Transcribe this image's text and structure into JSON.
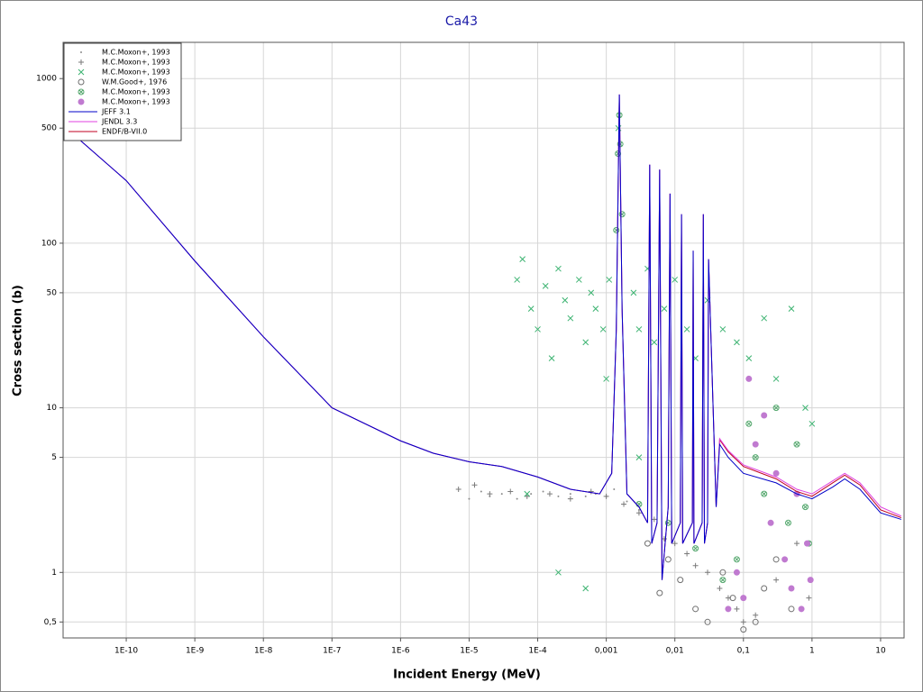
{
  "chart_data": {
    "type": "scatter",
    "title": "Ca43",
    "x_label": "Incident Energy (MeV)",
    "y_label": "Cross section (b)",
    "xscale": "log",
    "yscale": "log",
    "grid": true,
    "legend": "top-left",
    "xlim": [
      1.2e-11,
      22
    ],
    "ylim": [
      0.4,
      1660
    ],
    "xticks": [
      {
        "value": 1e-10,
        "label": "1E-10"
      },
      {
        "value": 1e-09,
        "label": "1E-9"
      },
      {
        "value": 1e-08,
        "label": "1E-8"
      },
      {
        "value": 1e-07,
        "label": "1E-7"
      },
      {
        "value": 1e-06,
        "label": "1E-6"
      },
      {
        "value": 1e-05,
        "label": "1E-5"
      },
      {
        "value": 0.0001,
        "label": "1E-4"
      },
      {
        "value": 0.001,
        "label": "0,001"
      },
      {
        "value": 0.01,
        "label": "0,01"
      },
      {
        "value": 0.1,
        "label": "0,1"
      },
      1,
      10
    ],
    "yticks": [
      {
        "value": 0.5,
        "label": "0,5"
      },
      1,
      5,
      10,
      50,
      100,
      500,
      1000
    ],
    "x": [
      1.2e-11,
      1e-10,
      1e-09,
      1e-08,
      1e-07,
      1e-06,
      3e-06,
      1e-05,
      3e-05,
      0.0001,
      0.0003,
      0.0008,
      0.0012,
      0.0014,
      0.00155,
      0.0017,
      0.002,
      0.003,
      0.004,
      0.0043,
      0.0046,
      0.0055,
      0.006,
      0.0065,
      0.008,
      0.0085,
      0.009,
      0.012,
      0.0125,
      0.013,
      0.018,
      0.0185,
      0.019,
      0.025,
      0.026,
      0.027,
      0.03,
      0.031,
      0.04,
      0.045,
      0.06,
      0.1,
      0.3,
      0.6,
      1,
      2,
      3,
      5,
      10,
      20
    ],
    "series": [
      {
        "name": "M.C.Moxon+, 1993",
        "style": "dot",
        "color": "#8c8c8c",
        "x": [
          1e-05,
          1.5e-05,
          2e-05,
          3e-05,
          5e-05,
          8e-05,
          0.00012,
          0.0002,
          0.0003,
          0.0005,
          0.0007,
          0.001,
          0.0013,
          0.002,
          0.003
        ],
        "values": [
          2.8,
          3.1,
          2.9,
          3.0,
          2.8,
          3.0,
          3.1,
          2.9,
          3.0,
          2.9,
          3.0,
          2.9,
          3.2,
          2.7,
          2.4
        ]
      },
      {
        "name": "M.C.Moxon+, 1993",
        "style": "plus",
        "color": "#7a7a7a",
        "x": [
          7e-06,
          1.2e-05,
          2e-05,
          4e-05,
          7e-05,
          0.00015,
          0.0003,
          0.0006,
          0.001,
          0.0018,
          0.003,
          0.005,
          0.007,
          0.01,
          0.015,
          0.02,
          0.03,
          0.045,
          0.06,
          0.08,
          0.1,
          0.15,
          0.3,
          0.6,
          0.9
        ],
        "values": [
          3.2,
          3.4,
          3.0,
          3.1,
          2.9,
          3.0,
          2.8,
          3.1,
          2.9,
          2.6,
          2.3,
          2.1,
          1.6,
          1.5,
          1.3,
          1.1,
          1.0,
          0.8,
          0.7,
          0.6,
          0.5,
          0.55,
          0.9,
          1.5,
          0.7
        ]
      },
      {
        "name": "M.C.Moxon+, 1993",
        "style": "cross",
        "color": "#3cb371",
        "x": [
          5e-05,
          6e-05,
          8e-05,
          0.0001,
          0.00013,
          0.00016,
          0.0002,
          0.00025,
          0.0003,
          0.0004,
          0.0005,
          0.0006,
          0.0007,
          0.0009,
          0.0011,
          0.0015,
          0.0025,
          0.003,
          0.004,
          0.005,
          0.007,
          0.01,
          0.015,
          0.02,
          0.03,
          0.05,
          0.08,
          0.12,
          0.2,
          0.3,
          0.5,
          0.8,
          1.0,
          7e-05,
          0.0002,
          0.0005,
          0.001,
          0.003
        ],
        "values": [
          60,
          80,
          40,
          30,
          55,
          20,
          70,
          45,
          35,
          60,
          25,
          50,
          40,
          30,
          60,
          500,
          50,
          30,
          70,
          25,
          40,
          60,
          30,
          20,
          45,
          30,
          25,
          20,
          35,
          15,
          40,
          10,
          8,
          3,
          1,
          0.8,
          15,
          5
        ]
      },
      {
        "name": "W.M.Good+, 1976",
        "style": "circle",
        "color": "#707070",
        "x": [
          0.004,
          0.006,
          0.008,
          0.012,
          0.02,
          0.03,
          0.05,
          0.07,
          0.1,
          0.15,
          0.2,
          0.3,
          0.5
        ],
        "values": [
          1.5,
          0.75,
          1.2,
          0.9,
          0.6,
          0.5,
          1.0,
          0.7,
          0.45,
          0.5,
          0.8,
          1.2,
          0.6
        ]
      },
      {
        "name": "M.C.Moxon+, 1993",
        "style": "circle-cross",
        "color": "#55a86e",
        "x": [
          0.0014,
          0.00148,
          0.00155,
          0.0016,
          0.0017,
          0.003,
          0.008,
          0.02,
          0.05,
          0.08,
          0.12,
          0.15,
          0.2,
          0.3,
          0.45,
          0.6,
          0.8,
          0.9
        ],
        "values": [
          120,
          350,
          600,
          400,
          150,
          2.6,
          2.0,
          1.4,
          0.9,
          1.2,
          8,
          5,
          3,
          10,
          2,
          6,
          2.5,
          1.5
        ]
      },
      {
        "name": "M.C.Moxon+, 1993",
        "style": "disc",
        "color": "#c07ad0",
        "x": [
          0.06,
          0.08,
          0.1,
          0.12,
          0.15,
          0.2,
          0.25,
          0.3,
          0.4,
          0.5,
          0.6,
          0.7,
          0.85,
          0.95
        ],
        "values": [
          0.6,
          1.0,
          0.7,
          15,
          6,
          9,
          2,
          4,
          1.2,
          0.8,
          3,
          0.6,
          1.5,
          0.9
        ]
      },
      {
        "name": "JEFF 3.1",
        "style": "line",
        "color": "#0000c8",
        "values": [
          520,
          240,
          78,
          27,
          10,
          6.3,
          5.3,
          4.7,
          4.4,
          3.8,
          3.2,
          3.0,
          4,
          30,
          800,
          40,
          3,
          2.5,
          2,
          300,
          1.5,
          2,
          280,
          0.9,
          2.5,
          200,
          1.5,
          2,
          150,
          1.5,
          2,
          90,
          1.5,
          2,
          150,
          1.5,
          2,
          80,
          2.5,
          6,
          5,
          4,
          3.5,
          3,
          2.8,
          3.3,
          3.7,
          3.2,
          2.3,
          2.1
        ]
      },
      {
        "name": "JENDL 3.3",
        "style": "line",
        "color": "#e040e0",
        "values": [
          520,
          240,
          78,
          27,
          10,
          6.3,
          5.3,
          4.7,
          4.4,
          3.8,
          3.2,
          3.0,
          4,
          30,
          800,
          40,
          3,
          2.5,
          2,
          300,
          1.5,
          2,
          280,
          0.9,
          2.5,
          200,
          1.5,
          2,
          150,
          1.5,
          2,
          90,
          1.5,
          2,
          150,
          1.5,
          2,
          80,
          2.5,
          6.5,
          5.5,
          4.5,
          3.8,
          3.2,
          3.0,
          3.6,
          4.0,
          3.5,
          2.5,
          2.2
        ]
      },
      {
        "name": "ENDF/B-VII.0",
        "style": "line",
        "color": "#c00020",
        "values": [
          520,
          240,
          78,
          27,
          10,
          6.3,
          5.3,
          4.7,
          4.4,
          3.8,
          3.2,
          3.0,
          4,
          30,
          800,
          40,
          3,
          2.5,
          2,
          300,
          1.5,
          2,
          280,
          0.9,
          2.5,
          200,
          1.5,
          2,
          150,
          1.5,
          2,
          90,
          1.5,
          2,
          150,
          1.5,
          2,
          80,
          2.5,
          6.4,
          5.4,
          4.4,
          3.7,
          3.1,
          2.9,
          3.5,
          3.9,
          3.4,
          2.4,
          2.15
        ]
      }
    ]
  }
}
